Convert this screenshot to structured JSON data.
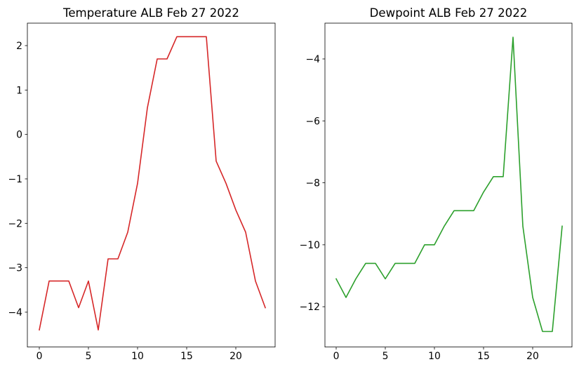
{
  "figure": {
    "background_color": "#ffffff",
    "text_color": "#000000",
    "spine_color": "#000000"
  },
  "chart_data": [
    {
      "type": "line",
      "title": "Temperature ALB Feb 27 2022",
      "xlabel": "",
      "ylabel": "",
      "xlim": [
        -1.2,
        24.2
      ],
      "ylim": [
        -4.75,
        2.55
      ],
      "xticks": [
        0,
        5,
        10,
        15,
        20
      ],
      "xtick_labels": [
        "0",
        "5",
        "10",
        "15",
        "20"
      ],
      "yticks": [
        2,
        1,
        0,
        -1,
        -2,
        -3,
        -4
      ],
      "ytick_labels": [
        "2",
        "1",
        "0",
        "−1",
        "−2",
        "−3",
        "−4"
      ],
      "grid": false,
      "legend": "none",
      "series": [
        {
          "name": "temperature",
          "color": "#d62728",
          "x": [
            0,
            1,
            2,
            3,
            4,
            5,
            6,
            7,
            8,
            9,
            10,
            11,
            12,
            13,
            14,
            15,
            16,
            17,
            18,
            19,
            20,
            21,
            22,
            23
          ],
          "values": [
            -4.4,
            -3.3,
            -3.3,
            -3.3,
            -3.9,
            -3.3,
            -4.4,
            -2.8,
            -2.8,
            -2.2,
            -1.1,
            0.6,
            1.7,
            1.7,
            2.2,
            2.2,
            2.2,
            2.2,
            -0.6,
            -1.1,
            -1.7,
            -2.2,
            -3.3,
            -3.9
          ]
        }
      ]
    },
    {
      "type": "line",
      "title": "Dewpoint ALB Feb 27 2022",
      "xlabel": "",
      "ylabel": "",
      "xlim": [
        -1.2,
        24.2
      ],
      "ylim": [
        -13.3,
        -2.8
      ],
      "xticks": [
        0,
        5,
        10,
        15,
        20
      ],
      "xtick_labels": [
        "0",
        "5",
        "10",
        "15",
        "20"
      ],
      "yticks": [
        -4,
        -6,
        -8,
        -10,
        -12
      ],
      "ytick_labels": [
        "−4",
        "−6",
        "−8",
        "−10",
        "−12"
      ],
      "grid": false,
      "legend": "none",
      "series": [
        {
          "name": "dewpoint",
          "color": "#2ca02c",
          "x": [
            0,
            1,
            2,
            3,
            4,
            5,
            6,
            7,
            8,
            9,
            10,
            11,
            12,
            13,
            14,
            15,
            16,
            17,
            18,
            19,
            20,
            21,
            22,
            23
          ],
          "values": [
            -11.1,
            -11.7,
            -11.1,
            -10.6,
            -10.6,
            -11.1,
            -10.6,
            -10.6,
            -10.6,
            -10.0,
            -10.0,
            -9.4,
            -8.9,
            -8.9,
            -8.9,
            -8.3,
            -7.8,
            -7.8,
            -3.3,
            -9.4,
            -11.7,
            -12.8,
            -12.8,
            -9.4
          ]
        }
      ]
    }
  ]
}
